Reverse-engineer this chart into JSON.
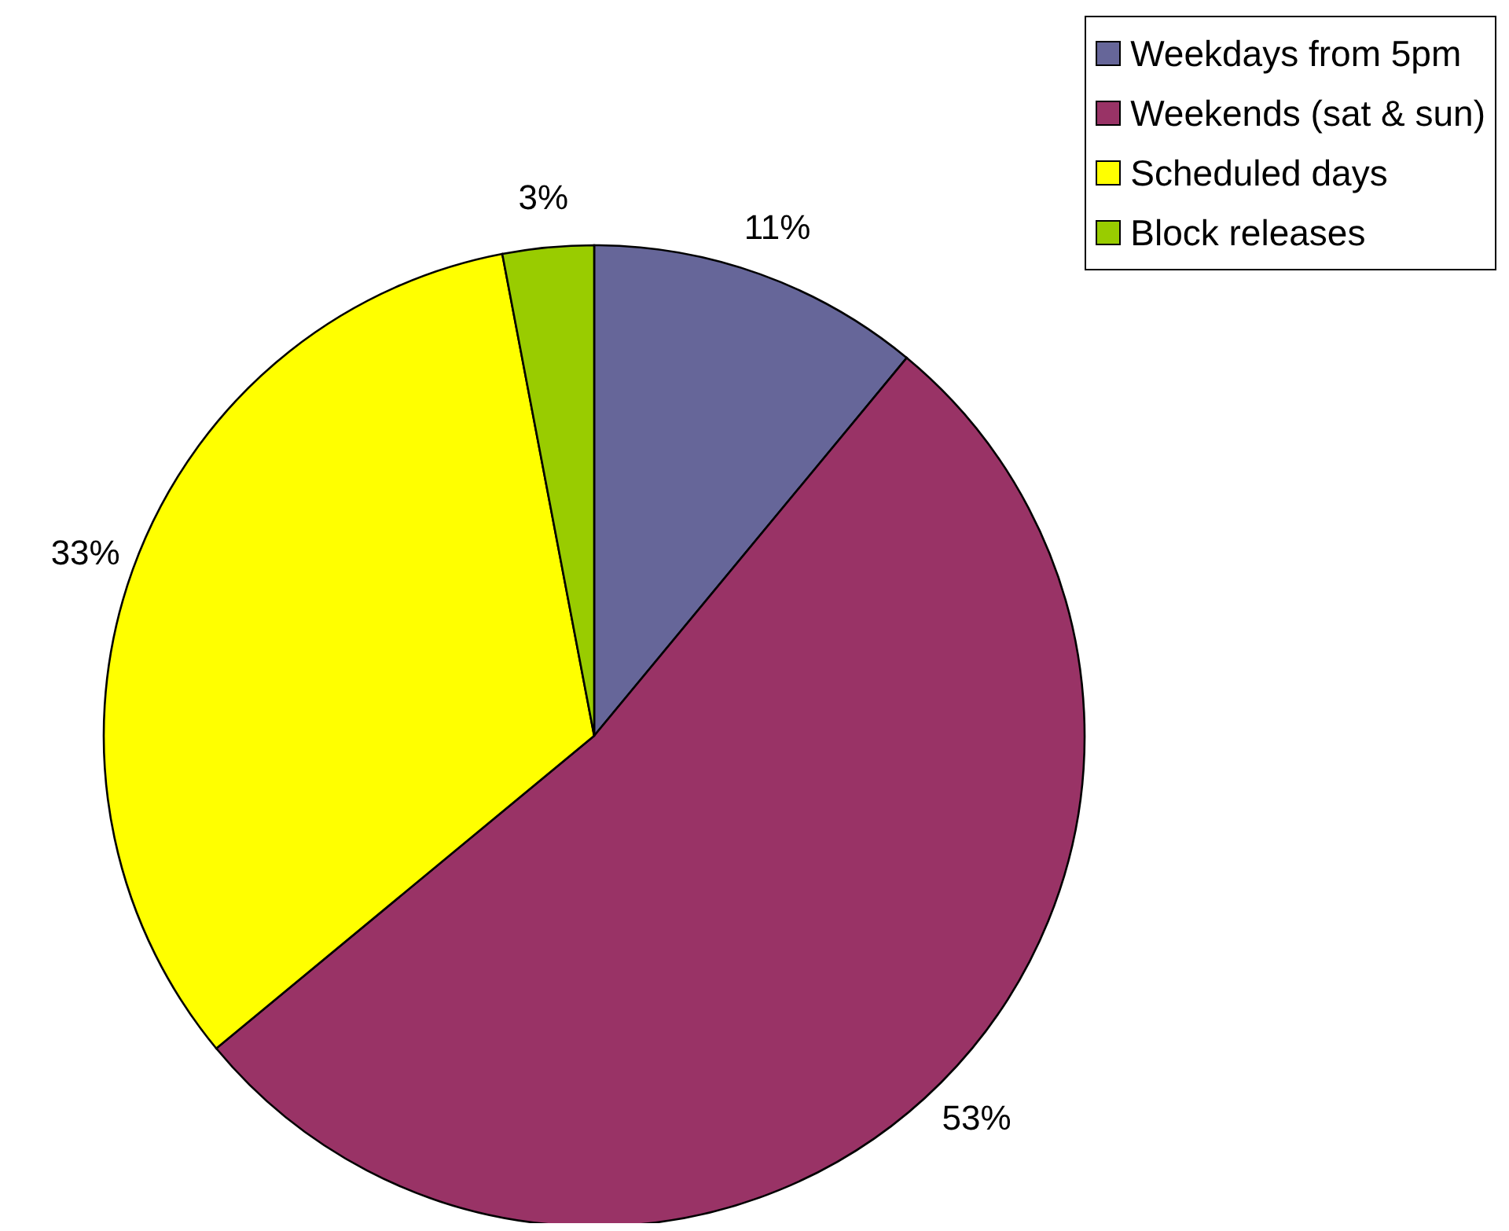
{
  "chart_data": {
    "type": "pie",
    "categories": [
      "Weekdays from 5pm",
      "Weekends (sat & sun)",
      "Scheduled days",
      "Block releases"
    ],
    "values": [
      11,
      53,
      33,
      3
    ],
    "value_labels": [
      "11%",
      "53%",
      "33%",
      "3%"
    ],
    "colors": [
      "#666699",
      "#993366",
      "#ffff00",
      "#99cc00"
    ],
    "legend": "top right"
  }
}
